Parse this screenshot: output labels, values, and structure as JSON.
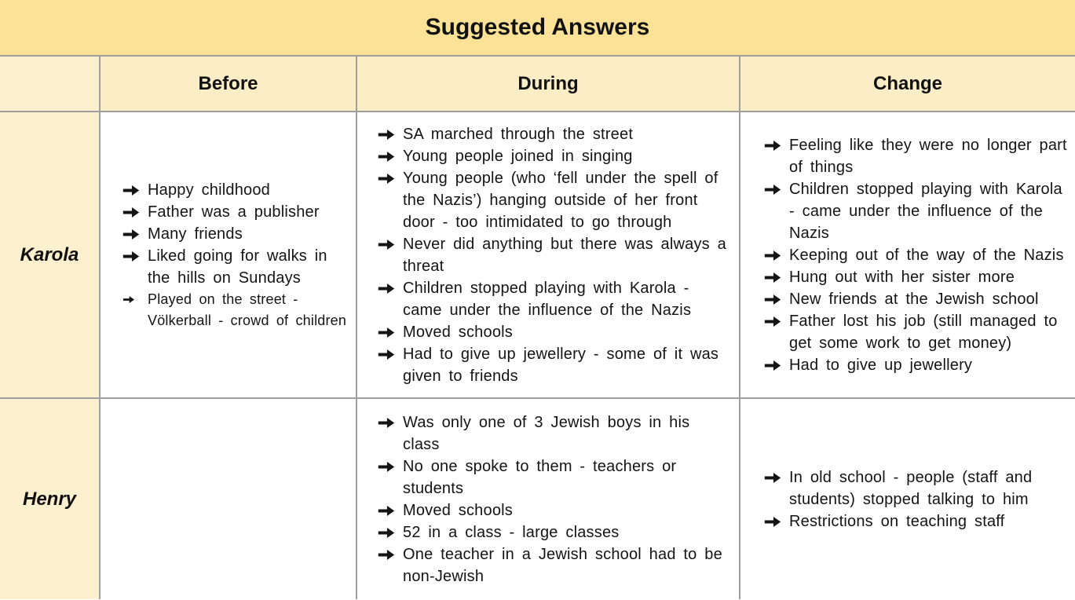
{
  "title": "Suggested Answers",
  "columns": [
    {
      "key": "before",
      "label": "Before"
    },
    {
      "key": "during",
      "label": "During"
    },
    {
      "key": "change",
      "label": "Change"
    }
  ],
  "bullet_icon": "arrow-right-icon",
  "colors": {
    "banner_bg": "#FBE297",
    "header_bg": "#FBEDC6",
    "label_bg": "#FDF0CF",
    "cell_bg": "#FFFFFF",
    "border": "#9E9E9E",
    "text": "#141414"
  },
  "rows": [
    {
      "label": "Karola",
      "before": [
        {
          "text": "Happy childhood"
        },
        {
          "text": "Father was a publisher"
        },
        {
          "text": "Many friends"
        },
        {
          "text": "Liked going for walks in the hills on Sundays"
        },
        {
          "text": "Played on the street - Völkerball - crowd of children",
          "small": true
        }
      ],
      "during": [
        {
          "text": "SA marched through the street"
        },
        {
          "text": "Young people joined in singing"
        },
        {
          "text": "Young people (who ‘fell under the spell of the Nazis’) hanging outside of her front door - too intimidated to go through"
        },
        {
          "text": "Never did anything but there was always a threat"
        },
        {
          "text": "Children stopped playing with Karola - came under the influence of the Nazis"
        },
        {
          "text": "Moved schools"
        },
        {
          "text": "Had to give up jewellery - some of it was given to friends"
        }
      ],
      "change": [
        {
          "text": "Feeling like they were no longer part of things"
        },
        {
          "text": "Children stopped playing with Karola - came under the influence of the Nazis"
        },
        {
          "text": "Keeping out of the way of the Nazis"
        },
        {
          "text": "Hung out with her sister more"
        },
        {
          "text": "New friends at the Jewish school"
        },
        {
          "text": "Father lost his job (still managed to get some work to get money)"
        },
        {
          "text": "Had to give up jewellery"
        }
      ]
    },
    {
      "label": "Henry",
      "before": [],
      "during": [
        {
          "text": "Was only one of 3 Jewish boys in his class"
        },
        {
          "text": "No one spoke to them - teachers or students"
        },
        {
          "text": "Moved schools"
        },
        {
          "text": "52 in a class - large classes"
        },
        {
          "text": "One teacher in a Jewish school had to be non-Jewish"
        }
      ],
      "change": [
        {
          "text": "In old school - people (staff and students) stopped talking to him"
        },
        {
          "text": "Restrictions on teaching staff"
        }
      ]
    }
  ]
}
